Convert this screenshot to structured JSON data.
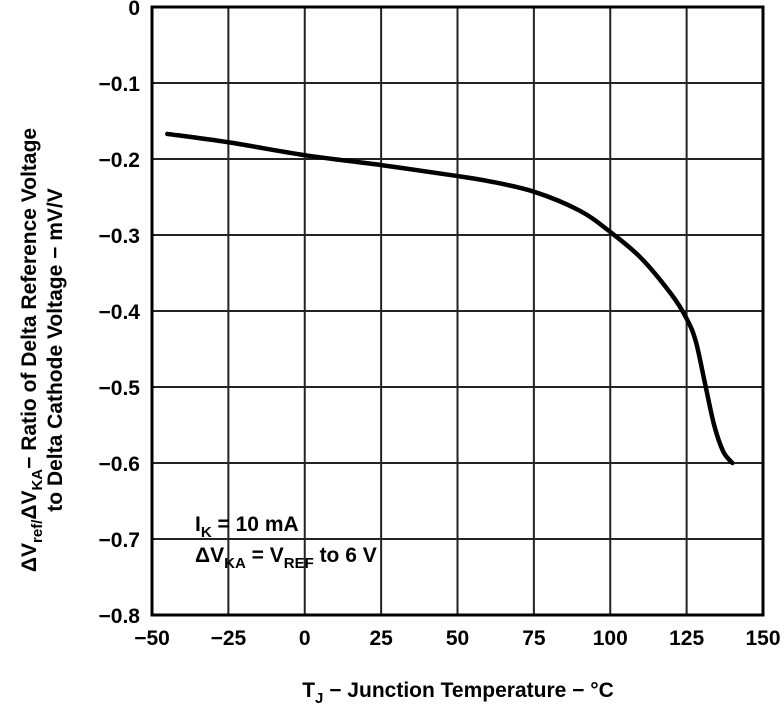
{
  "chart_data": {
    "type": "line",
    "title": "",
    "xlabel": {
      "main": "T",
      "sub": "J",
      "rest": " − Junction Temperature − °C"
    },
    "ylabel": {
      "line1_parts": [
        {
          "t": "ΔV",
          "sub": false
        },
        {
          "t": "ref/",
          "sub": true
        },
        {
          "t": "ΔV",
          "sub": false
        },
        {
          "t": "KA",
          "sub": true
        },
        {
          "t": "− Ratio of Delta Reference Voltage",
          "sub": false
        }
      ],
      "line2": "to Delta Cathode Voltage − mV/V"
    },
    "xlim": [
      -50,
      150
    ],
    "ylim": [
      -0.8,
      0
    ],
    "grid": true,
    "x_ticks": [
      -50,
      -25,
      0,
      25,
      50,
      75,
      100,
      125,
      150
    ],
    "x_tick_labels": [
      "−50",
      "−25",
      "0",
      "25",
      "50",
      "75",
      "100",
      "125",
      "150"
    ],
    "y_ticks": [
      0,
      -0.1,
      -0.2,
      -0.3,
      -0.4,
      -0.5,
      -0.6,
      -0.7,
      -0.8
    ],
    "y_tick_labels": [
      "0",
      "−0.1",
      "−0.2",
      "−0.3",
      "−0.4",
      "−0.5",
      "−0.6",
      "−0.7",
      "−0.8"
    ],
    "series": [
      {
        "x": [
          -45,
          -25,
          0,
          25,
          47.5,
          60,
          75,
          90,
          100,
          110,
          120,
          125,
          128,
          131,
          134,
          137,
          140
        ],
        "y": [
          -0.167,
          -0.178,
          -0.195,
          -0.208,
          -0.221,
          -0.229,
          -0.243,
          -0.268,
          -0.296,
          -0.33,
          -0.378,
          -0.41,
          -0.44,
          -0.495,
          -0.55,
          -0.585,
          -0.6
        ]
      }
    ],
    "annotation": {
      "line1": {
        "a": "I",
        "a_sub": "K",
        "b": " = 10 mA"
      },
      "line2": {
        "a": "ΔV",
        "a_sub": "KA",
        "b": " = V",
        "b_sub": "REF",
        "c": " to 6 V"
      }
    },
    "colors": {
      "line": "#000000",
      "grid": "#222222"
    }
  }
}
